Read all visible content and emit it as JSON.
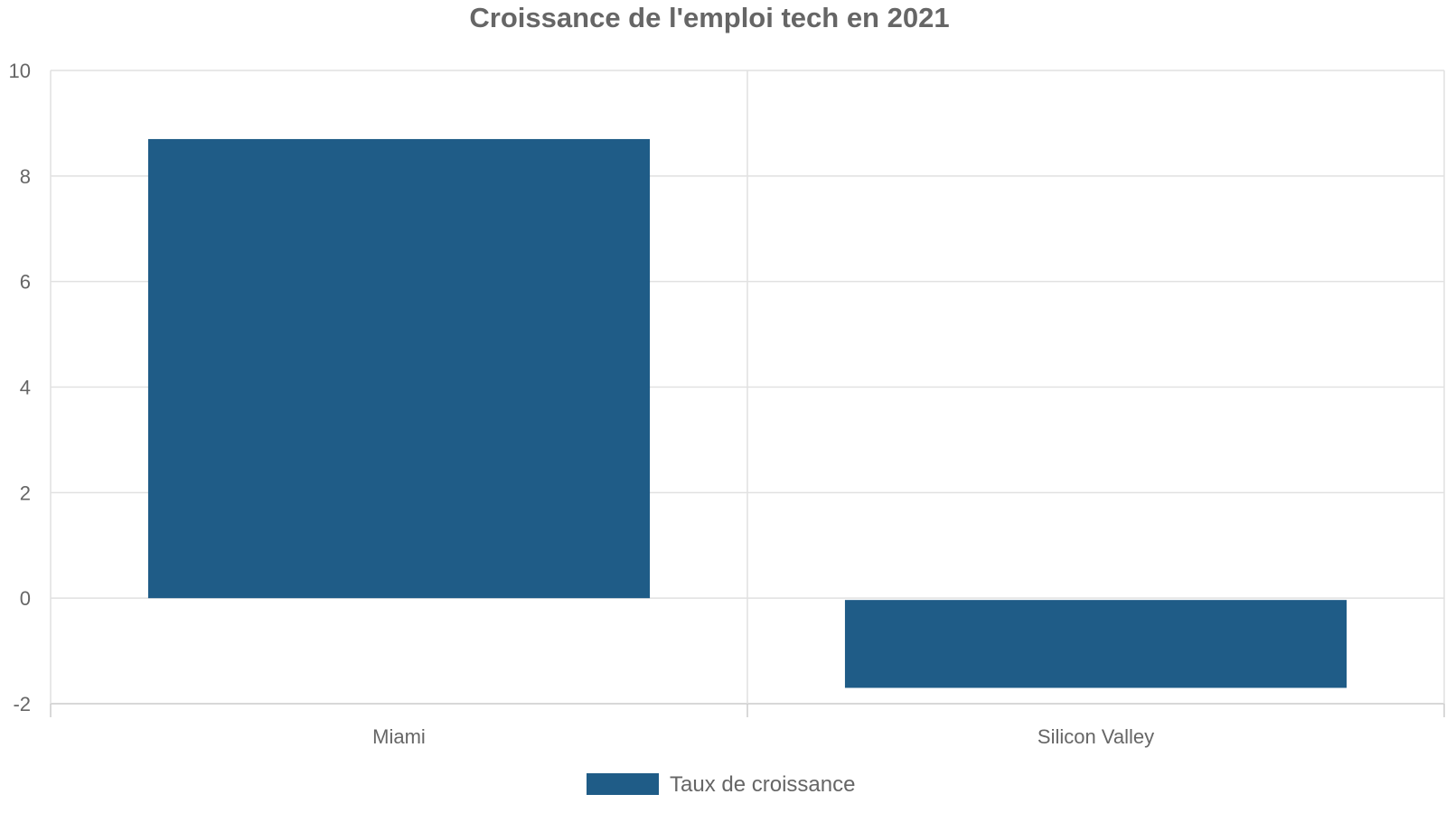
{
  "chart_data": {
    "type": "bar",
    "title": "Croissance de l'emploi tech en 2021",
    "categories": [
      "Miami",
      "Silicon Valley"
    ],
    "series": [
      {
        "name": "Taux de croissance",
        "values": [
          8.7,
          -1.7
        ],
        "color": "#1f5c87"
      }
    ],
    "ylim": [
      -2,
      10
    ],
    "yticks": [
      "-2",
      "0",
      "2",
      "4",
      "6",
      "8",
      "10"
    ],
    "grid": true,
    "legend_position": "bottom-center"
  }
}
